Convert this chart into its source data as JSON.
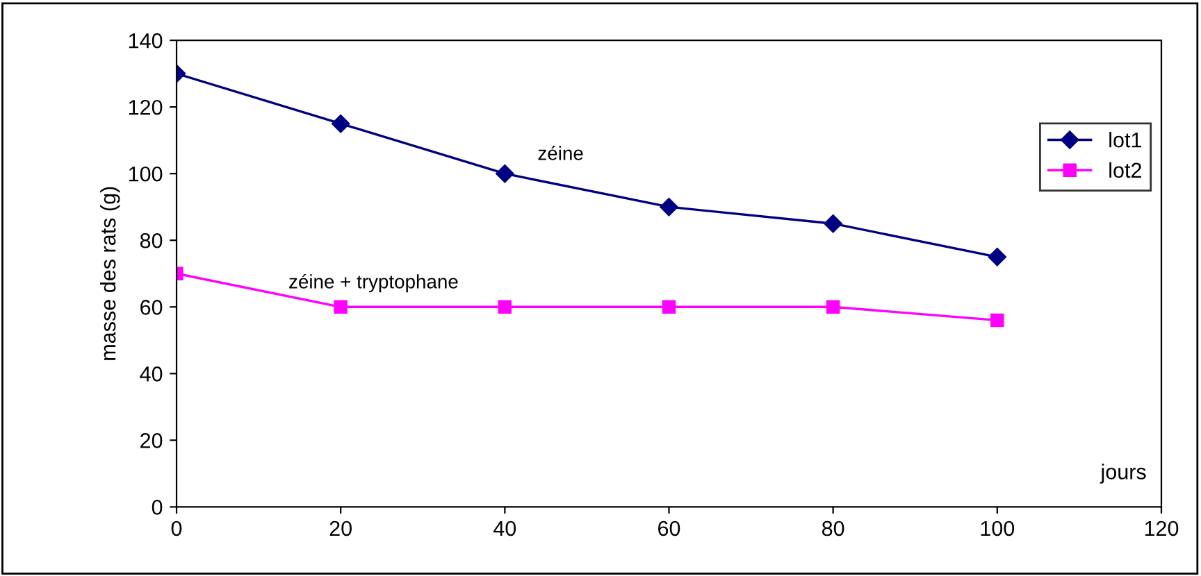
{
  "chart_data": {
    "type": "line",
    "xlabel": "jours",
    "ylabel": "masse des rats (g)",
    "x": [
      0,
      20,
      40,
      60,
      80,
      100
    ],
    "series": [
      {
        "name": "lot1",
        "color": "#000080",
        "marker": "diamond",
        "values": [
          130,
          115,
          100,
          90,
          85,
          75
        ]
      },
      {
        "name": "lot2",
        "color": "#ff00ff",
        "marker": "square",
        "values": [
          70,
          60,
          60,
          60,
          60,
          56
        ]
      }
    ],
    "annotations": [
      "zéine",
      "zéine + tryptophane"
    ],
    "xlim": [
      0,
      120
    ],
    "xticks": [
      0,
      20,
      40,
      60,
      80,
      100,
      120
    ],
    "ylim": [
      0,
      140
    ],
    "yticks": [
      0,
      20,
      40,
      60,
      80,
      100,
      120,
      140
    ],
    "grid": false,
    "legend": "right",
    "line_style": "solid"
  }
}
